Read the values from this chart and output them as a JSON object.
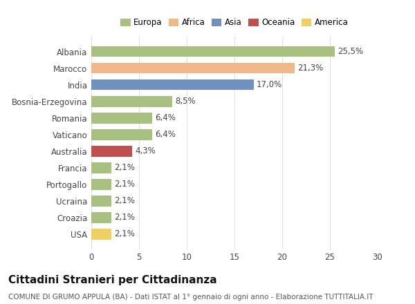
{
  "categories": [
    "Albania",
    "Marocco",
    "India",
    "Bosnia-Erzegovina",
    "Romania",
    "Vaticano",
    "Australia",
    "Francia",
    "Portogallo",
    "Ucraina",
    "Croazia",
    "USA"
  ],
  "values": [
    25.5,
    21.3,
    17.0,
    8.5,
    6.4,
    6.4,
    4.3,
    2.1,
    2.1,
    2.1,
    2.1,
    2.1
  ],
  "labels": [
    "25,5%",
    "21,3%",
    "17,0%",
    "8,5%",
    "6,4%",
    "6,4%",
    "4,3%",
    "2,1%",
    "2,1%",
    "2,1%",
    "2,1%",
    "2,1%"
  ],
  "colors": [
    "#a8c080",
    "#f0b888",
    "#7090c0",
    "#a8c080",
    "#a8c080",
    "#a8c080",
    "#c05050",
    "#a8c080",
    "#a8c080",
    "#a8c080",
    "#a8c080",
    "#f0d060"
  ],
  "legend_labels": [
    "Europa",
    "Africa",
    "Asia",
    "Oceania",
    "America"
  ],
  "legend_colors": [
    "#a8c080",
    "#f0b888",
    "#7090c0",
    "#c05050",
    "#f0d060"
  ],
  "title": "Cittadini Stranieri per Cittadinanza",
  "subtitle": "COMUNE DI GRUMO APPULA (BA) - Dati ISTAT al 1° gennaio di ogni anno - Elaborazione TUTTITALIA.IT",
  "xlim": [
    0,
    30
  ],
  "xticks": [
    0,
    5,
    10,
    15,
    20,
    25,
    30
  ],
  "background_color": "#ffffff",
  "grid_color": "#e0e0e0",
  "bar_height": 0.65,
  "title_fontsize": 11,
  "subtitle_fontsize": 7.5,
  "label_fontsize": 8.5,
  "tick_fontsize": 8.5,
  "legend_fontsize": 8.5
}
